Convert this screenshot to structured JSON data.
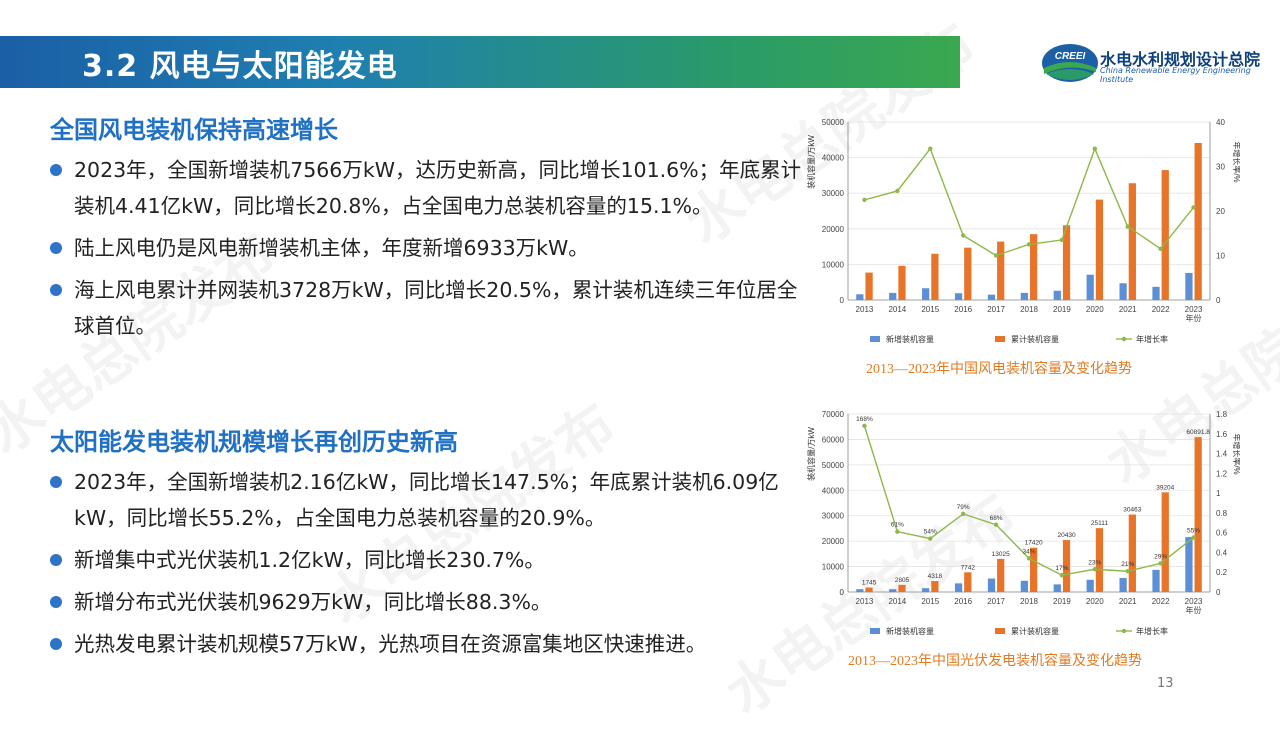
{
  "header": {
    "title": "3.2 风电与太阳能发电",
    "org_cn": "水电水利规划设计总院",
    "org_en": "China Renewable Energy Engineering Institute",
    "logo_text": "CREEI"
  },
  "watermark_text": "水电总院发布",
  "wind": {
    "heading": "全国风电装机保持高速增长",
    "bullets": [
      "2023年，全国新增装机7566万kW，达历史新高，同比增长101.6%；年底累计装机4.41亿kW，同比增长20.8%，占全国电力总装机容量的15.1%。",
      "陆上风电仍是风电新增装机主体，年度新增6933万kW。",
      "海上风电累计并网装机3728万kW，同比增长20.5%，累计装机连续三年位居全球首位。"
    ],
    "caption": "2013—2023年中国风电装机容量及变化趋势"
  },
  "solar": {
    "heading": "太阳能发电装机规模增长再创历史新高",
    "bullets": [
      "2023年，全国新增装机2.16亿kW，同比增长147.5%；年底累计装机6.09亿kW，同比增长55.2%，占全国电力总装机容量的20.9%。",
      "新增集中式光伏装机1.2亿kW，同比增长230.7%。",
      "新增分布式光伏装机9629万kW，同比增长88.3%。",
      "光热发电累计装机规模57万kW，光热项目在资源富集地区快速推进。"
    ],
    "caption": "2013—2023年中国光伏发电装机容量及变化趋势"
  },
  "page_number": "13",
  "colors": {
    "new_bar": "#5b8fd6",
    "cum_bar": "#e8742a",
    "rate_line": "#8db84a",
    "caption": "#e07b22",
    "heading": "#2070c4"
  },
  "chart_data": [
    {
      "type": "bar",
      "title": "2013—2023年中国风电装机容量及变化趋势",
      "categories": [
        "2013",
        "2014",
        "2015",
        "2016",
        "2017",
        "2018",
        "2019",
        "2020",
        "2021",
        "2022",
        "2023"
      ],
      "x_unit_label": "年份",
      "ylabel": "装机容量/万kW",
      "ylim": [
        0,
        50000
      ],
      "yticks": [
        0,
        10000,
        20000,
        30000,
        40000,
        50000
      ],
      "y2label": "年增长率/%",
      "y2lim": [
        0,
        40
      ],
      "y2ticks": [
        0,
        10,
        20,
        30,
        40
      ],
      "series": [
        {
          "name": "新增装机容量",
          "kind": "bar",
          "values": [
            1600,
            2000,
            3300,
            1900,
            1500,
            2000,
            2600,
            7100,
            4700,
            3700,
            7600
          ]
        },
        {
          "name": "累计装机容量",
          "kind": "bar",
          "values": [
            7700,
            9600,
            13000,
            14700,
            16400,
            18500,
            21000,
            28200,
            32800,
            36500,
            44100
          ]
        },
        {
          "name": "年增长率",
          "kind": "line",
          "axis": "right",
          "values": [
            22.5,
            24.5,
            34.0,
            14.5,
            10.0,
            12.5,
            13.5,
            34.0,
            16.5,
            11.5,
            20.8
          ]
        }
      ],
      "legend_position": "bottom",
      "grid": true
    },
    {
      "type": "bar",
      "title": "2013—2023年中国光伏发电装机容量及变化趋势",
      "categories": [
        "2013",
        "2014",
        "2015",
        "2016",
        "2017",
        "2018",
        "2019",
        "2020",
        "2021",
        "2022",
        "2023"
      ],
      "x_unit_label": "年份",
      "ylabel": "装机容量/万kW",
      "ylim": [
        0,
        70000
      ],
      "yticks": [
        0,
        10000,
        20000,
        30000,
        40000,
        50000,
        60000,
        70000
      ],
      "y2label": "年增长率/%",
      "y2lim": [
        0,
        1.8
      ],
      "y2ticks": [
        0,
        0.2,
        0.4,
        0.6,
        0.8,
        1.0,
        1.2,
        1.4,
        1.6,
        1.8
      ],
      "series": [
        {
          "name": "新增装机容量",
          "kind": "bar",
          "values": [
            1100,
            1100,
            1500,
            3400,
            5300,
            4400,
            3000,
            4800,
            5500,
            8700,
            21600
          ]
        },
        {
          "name": "累计装机容量",
          "kind": "bar",
          "values": [
            1745,
            2805,
            4318,
            7742,
            13025,
            17420,
            20430,
            25111,
            30463,
            39204,
            60891.8
          ],
          "labels": [
            "1745",
            "2805",
            "4318",
            "7742",
            "13025",
            "17420",
            "20430",
            "25111",
            "30463",
            "39204",
            "60891.8"
          ]
        },
        {
          "name": "年增长率",
          "kind": "line",
          "axis": "right",
          "values": [
            1.68,
            0.61,
            0.54,
            0.79,
            0.68,
            0.34,
            0.17,
            0.23,
            0.21,
            0.29,
            0.55
          ],
          "labels": [
            "168%",
            "61%",
            "54%",
            "79%",
            "68%",
            "34%",
            "17%",
            "23%",
            "21%",
            "29%",
            "55%"
          ]
        }
      ],
      "legend_position": "bottom",
      "grid": true
    }
  ]
}
